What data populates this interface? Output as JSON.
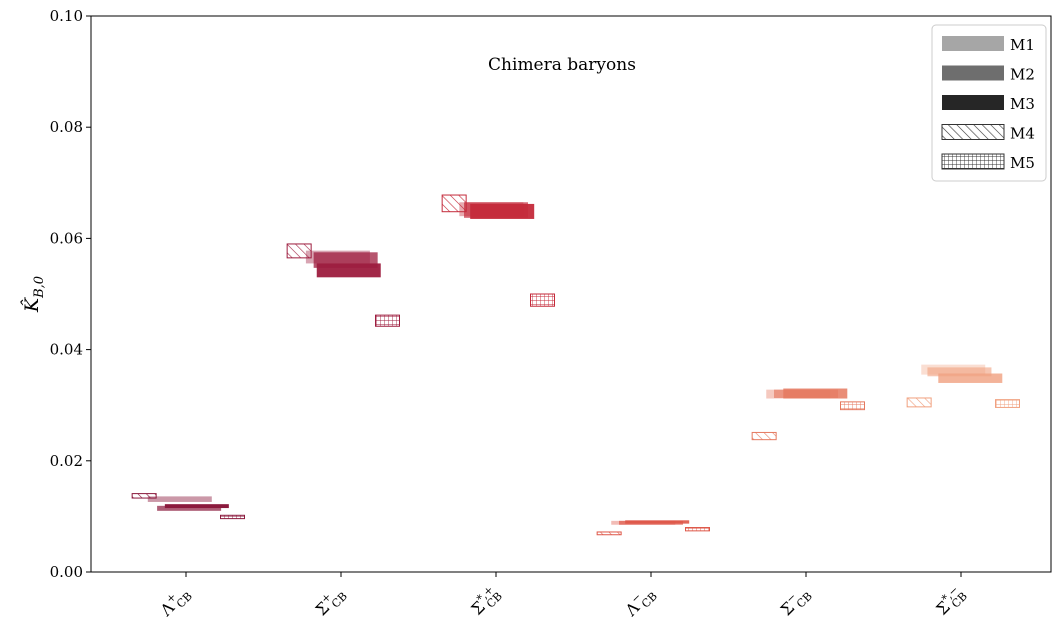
{
  "chart_data": {
    "type": "bar",
    "title": "Chimera baryons",
    "xlabel": "",
    "ylabel": "K̂",
    "ylabel_sub": "B,0",
    "ylim": [
      0.0,
      0.1
    ],
    "yticks": [
      "0.00",
      "0.02",
      "0.04",
      "0.06",
      "0.08",
      "0.10"
    ],
    "yticks_values": [
      0.0,
      0.02,
      0.04,
      0.06,
      0.08,
      0.1
    ],
    "categories": [
      {
        "base": "Λ",
        "sup": "+",
        "sub": "CB",
        "color": "#8b1a3d"
      },
      {
        "base": "Σ",
        "sup": "+",
        "sub": "CB",
        "color": "#9d1c3e"
      },
      {
        "base": "Σ",
        "sup": "*,+",
        "sub": "CB",
        "color": "#c42a3a"
      },
      {
        "base": "Λ",
        "sup": "−",
        "sub": "CB",
        "color": "#de5748"
      },
      {
        "base": "Σ",
        "sup": "−",
        "sub": "CB",
        "color": "#e5795f"
      },
      {
        "base": "Σ",
        "sup": "*,−",
        "sub": "CB",
        "color": "#f0a07f"
      }
    ],
    "legend": {
      "placement": "top-right",
      "entries": [
        {
          "label": "M1",
          "style": "solid",
          "color": "#a6a6a6"
        },
        {
          "label": "M2",
          "style": "solid",
          "color": "#6e6e6e"
        },
        {
          "label": "M3",
          "style": "solid",
          "color": "#262626"
        },
        {
          "label": "M4",
          "style": "hatch",
          "color": "#333333"
        },
        {
          "label": "M5",
          "style": "grid",
          "color": "#333333"
        }
      ]
    },
    "series": [
      {
        "name": "M4",
        "style": "hatch",
        "entries": [
          {
            "cat": 0,
            "pos": -0.27,
            "lo": 0.0133,
            "hi": 0.0141
          },
          {
            "cat": 1,
            "pos": -0.27,
            "lo": 0.0565,
            "hi": 0.059
          },
          {
            "cat": 2,
            "pos": -0.27,
            "lo": 0.0648,
            "hi": 0.0678
          },
          {
            "cat": 3,
            "pos": -0.27,
            "lo": 0.0067,
            "hi": 0.0072
          },
          {
            "cat": 4,
            "pos": -0.27,
            "lo": 0.0238,
            "hi": 0.0251
          },
          {
            "cat": 5,
            "pos": -0.27,
            "lo": 0.0297,
            "hi": 0.0313
          }
        ]
      },
      {
        "name": "M1",
        "style": "solid",
        "entries": [
          {
            "cat": 0,
            "pos": -0.04,
            "lo": 0.0126,
            "hi": 0.0136,
            "alpha": 0.45
          },
          {
            "cat": 1,
            "pos": -0.02,
            "lo": 0.0555,
            "hi": 0.0578,
            "alpha": 0.4
          },
          {
            "cat": 2,
            "pos": -0.03,
            "lo": 0.064,
            "hi": 0.0665,
            "alpha": 0.4
          },
          {
            "cat": 3,
            "pos": -0.05,
            "lo": 0.0085,
            "hi": 0.0092,
            "alpha": 0.4
          },
          {
            "cat": 4,
            "pos": -0.05,
            "lo": 0.0312,
            "hi": 0.0328,
            "alpha": 0.4
          },
          {
            "cat": 5,
            "pos": -0.05,
            "lo": 0.0355,
            "hi": 0.0373,
            "alpha": 0.35
          }
        ]
      },
      {
        "name": "M2",
        "style": "solid",
        "entries": [
          {
            "cat": 0,
            "pos": 0.02,
            "lo": 0.011,
            "hi": 0.0119,
            "alpha": 0.7
          },
          {
            "cat": 1,
            "pos": 0.03,
            "lo": 0.0547,
            "hi": 0.0575,
            "alpha": 0.75
          },
          {
            "cat": 2,
            "pos": 0.0,
            "lo": 0.0637,
            "hi": 0.0665,
            "alpha": 0.7
          },
          {
            "cat": 3,
            "pos": 0.0,
            "lo": 0.0085,
            "hi": 0.0092,
            "alpha": 0.7
          },
          {
            "cat": 4,
            "pos": 0.0,
            "lo": 0.0313,
            "hi": 0.0328,
            "alpha": 0.65
          },
          {
            "cat": 5,
            "pos": -0.01,
            "lo": 0.0352,
            "hi": 0.0368,
            "alpha": 0.6
          }
        ]
      },
      {
        "name": "M3",
        "style": "solid",
        "entries": [
          {
            "cat": 0,
            "pos": 0.07,
            "lo": 0.0115,
            "hi": 0.0122,
            "alpha": 1.0
          },
          {
            "cat": 1,
            "pos": 0.05,
            "lo": 0.053,
            "hi": 0.0555,
            "alpha": 0.95
          },
          {
            "cat": 2,
            "pos": 0.04,
            "lo": 0.0635,
            "hi": 0.0662,
            "alpha": 0.95
          },
          {
            "cat": 3,
            "pos": 0.04,
            "lo": 0.0087,
            "hi": 0.0093,
            "alpha": 0.9
          },
          {
            "cat": 4,
            "pos": 0.06,
            "lo": 0.0312,
            "hi": 0.033,
            "alpha": 0.85
          },
          {
            "cat": 5,
            "pos": 0.06,
            "lo": 0.034,
            "hi": 0.0357,
            "alpha": 0.8
          }
        ]
      },
      {
        "name": "M5",
        "style": "grid",
        "entries": [
          {
            "cat": 0,
            "pos": 0.3,
            "lo": 0.0096,
            "hi": 0.0102
          },
          {
            "cat": 1,
            "pos": 0.3,
            "lo": 0.0442,
            "hi": 0.0462
          },
          {
            "cat": 2,
            "pos": 0.3,
            "lo": 0.0478,
            "hi": 0.05
          },
          {
            "cat": 3,
            "pos": 0.3,
            "lo": 0.0074,
            "hi": 0.008
          },
          {
            "cat": 4,
            "pos": 0.3,
            "lo": 0.0292,
            "hi": 0.0306
          },
          {
            "cat": 5,
            "pos": 0.3,
            "lo": 0.0296,
            "hi": 0.031
          }
        ]
      }
    ]
  }
}
